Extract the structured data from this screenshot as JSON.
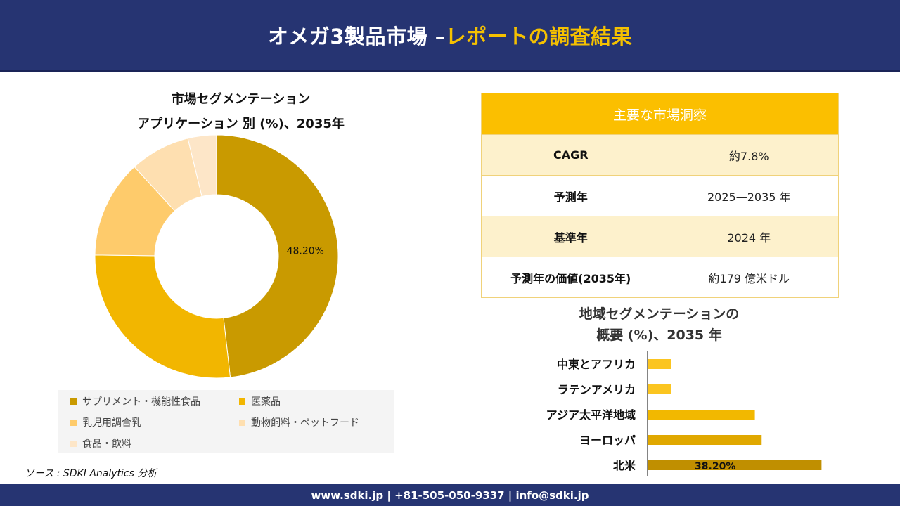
{
  "header": {
    "title_main": "オメガ3製品市場 –",
    "title_accent": "レポートの調査結果"
  },
  "colors": {
    "navy": "#263472",
    "accent": "#f5c100"
  },
  "donut_section": {
    "title_line1": "市場セグメンテーション",
    "title_line2": "アプリケーション 別 (%)、2035年"
  },
  "source": "ソース : SDKI Analytics 分析",
  "insights": {
    "title": "主要な市場洞察",
    "rows": [
      {
        "label": "CAGR",
        "value": "約7.8%"
      },
      {
        "label": "予測年",
        "value": "2025—2035 年"
      },
      {
        "label": "基準年",
        "value": "2024 年"
      },
      {
        "label": "予測年の価値(2035年)",
        "value": "約179 億米ドル"
      }
    ]
  },
  "bar_section": {
    "title_line1": "地域セグメンテーションの",
    "title_line2": "概要 (%)、2035 年"
  },
  "footer": {
    "text": "www.sdki.jp | +81-505-050-9337 | info@sdki.jp"
  },
  "chart_data": [
    {
      "type": "pie",
      "variant": "donut",
      "categories": [
        "サプリメント・機能性食品",
        "医薬品",
        "乳児用調合乳",
        "動物飼料・ペットフード",
        "食品・飲料"
      ],
      "values": [
        48.2,
        27,
        13,
        8,
        3.8
      ],
      "colors": [
        "#c99a00",
        "#f2b600",
        "#fecb6b",
        "#fedfb0",
        "#fde6c8"
      ],
      "data_labels": [
        "48.20%",
        "",
        "",
        "",
        ""
      ],
      "legend_position": "bottom"
    },
    {
      "type": "bar",
      "orientation": "horizontal",
      "categories": [
        "中東とアフリカ",
        "ラテンアメリカ",
        "アジア太平洋地域",
        "ヨーロッパ",
        "北米"
      ],
      "values": [
        5,
        5,
        23.5,
        25,
        38.2
      ],
      "colors": [
        "#fbc520",
        "#fbc520",
        "#f2b800",
        "#e0a800",
        "#c08f00"
      ],
      "data_labels": [
        "",
        "",
        "",
        "",
        "38.20%"
      ],
      "xlim": [
        0,
        40
      ]
    }
  ]
}
